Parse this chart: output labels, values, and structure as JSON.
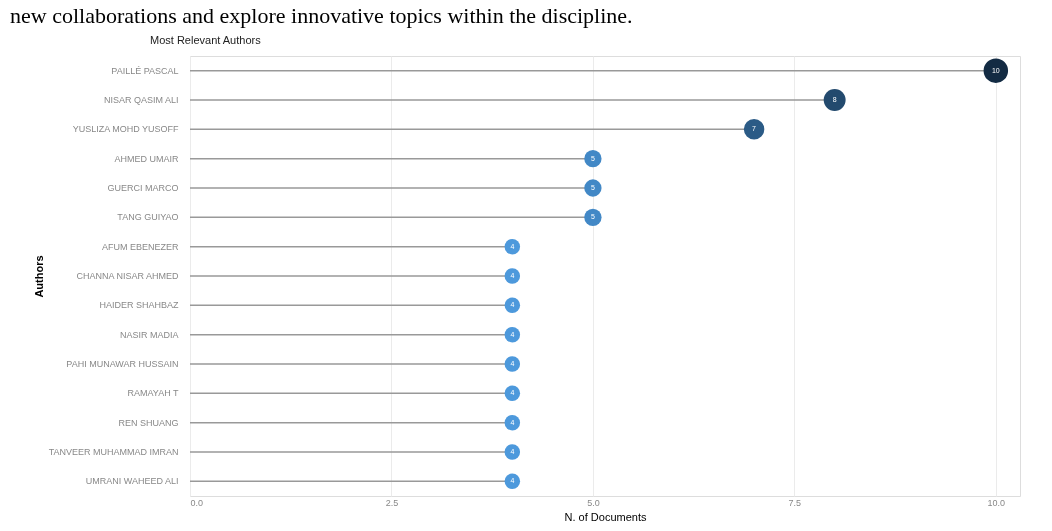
{
  "chart_data": {
    "type": "lollipop",
    "orientation": "horizontal",
    "title": "Most Relevant Authors",
    "xlabel": "N. of Documents",
    "ylabel": "Authors",
    "annotations": [
      "new collaborations and explore innovative topics within the discipline."
    ],
    "categories": [
      "PAILLÉ PASCAL",
      "NISAR QASIM ALI",
      "YUSLIZA MOHD YUSOFF",
      "AHMED UMAIR",
      "GUERCI MARCO",
      "TANG GUIYAO",
      "AFUM EBENEZER",
      "CHANNA NISAR AHMED",
      "HAIDER SHAHBAZ",
      "NASIR MADIA",
      "PAHI MUNAWAR HUSSAIN",
      "RAMAYAH T",
      "REN SHUANG",
      "TANVEER MUHAMMAD IMRAN",
      "UMRANI WAHEED ALI"
    ],
    "values": [
      10,
      8,
      7,
      5,
      5,
      5,
      4,
      4,
      4,
      4,
      4,
      4,
      4,
      4,
      4
    ],
    "colors": [
      "#132b43",
      "#234a6e",
      "#2b5b86",
      "#4288c6",
      "#4288c6",
      "#4288c6",
      "#4d99dc",
      "#4d99dc",
      "#4d99dc",
      "#4d99dc",
      "#4d99dc",
      "#4d99dc",
      "#4d99dc",
      "#4d99dc",
      "#4d99dc"
    ],
    "sizes": [
      1,
      0.8,
      0.7,
      0.5,
      0.5,
      0.5,
      0.4,
      0.4,
      0.4,
      0.4,
      0.4,
      0.4,
      0.4,
      0.4,
      0.4
    ],
    "xlim": [
      0,
      10.3
    ],
    "xticks": [
      {
        "value": 0,
        "label": "0.0"
      },
      {
        "value": 2.5,
        "label": "2.5"
      },
      {
        "value": 5,
        "label": "5.0"
      },
      {
        "value": 7.5,
        "label": "7.5"
      },
      {
        "value": 10,
        "label": "10.0"
      }
    ],
    "grid": "x",
    "data_labels": true
  }
}
